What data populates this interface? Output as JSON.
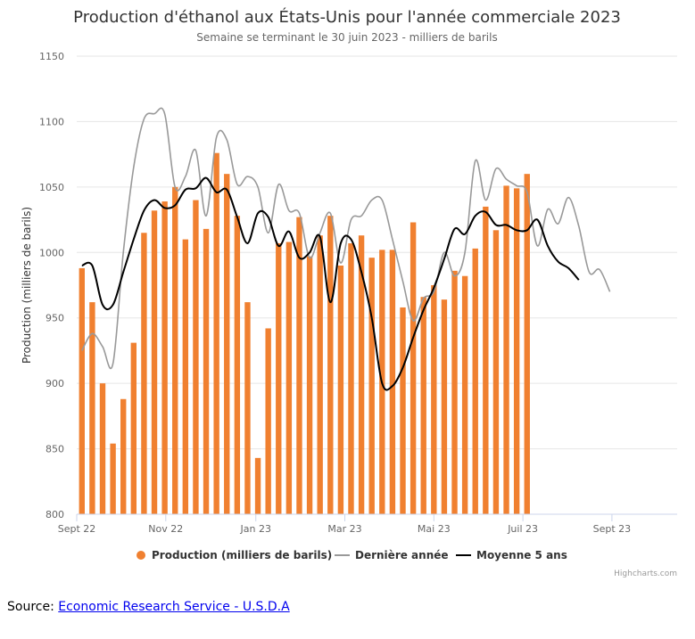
{
  "chart_data": {
    "type": "bar",
    "title": "Production d'éthanol aux États-Unis pour l'année commerciale 2023",
    "subtitle": "Semaine se terminant le 30 juin 2023 - milliers de barils",
    "ylabel": "Production (milliers de barils)",
    "ylim": [
      800,
      1150
    ],
    "yticks": [
      800,
      850,
      900,
      950,
      1000,
      1050,
      1100,
      1150
    ],
    "x_count": 58,
    "xticks": [
      {
        "index": 0,
        "label": "Sept 22"
      },
      {
        "index": 8.6,
        "label": "Nov 22"
      },
      {
        "index": 17.3,
        "label": "Jan 23"
      },
      {
        "index": 25.9,
        "label": "Mar 23"
      },
      {
        "index": 34.5,
        "label": "Mai 23"
      },
      {
        "index": 43.1,
        "label": "Juil 23"
      },
      {
        "index": 51.7,
        "label": "Sept 23"
      }
    ],
    "grid": true,
    "legend_position": "bottom",
    "series": [
      {
        "name": "Production (milliers de barils)",
        "type": "bar",
        "color": "#f08030",
        "values": [
          988,
          962,
          900,
          854,
          888,
          931,
          1015,
          1032,
          1039,
          1050,
          1010,
          1040,
          1018,
          1076,
          1060,
          1028,
          962,
          843,
          942,
          1007,
          1008,
          1027,
          997,
          1013,
          1028,
          990,
          1007,
          1013,
          996,
          1002,
          1002,
          958,
          1023,
          966,
          975,
          964,
          986,
          982,
          1003,
          1035,
          1017,
          1051,
          1049,
          1060
        ]
      },
      {
        "name": "Dernière année",
        "type": "line",
        "color": "#999999",
        "values": [
          925,
          938,
          928,
          915,
          1000,
          1065,
          1102,
          1106,
          1106,
          1050,
          1058,
          1078,
          1028,
          1088,
          1086,
          1052,
          1058,
          1050,
          1015,
          1052,
          1032,
          1030,
          996,
          1015,
          1030,
          992,
          1025,
          1028,
          1040,
          1040,
          1010,
          978,
          948,
          965,
          970,
          1000,
          982,
          1000,
          1070,
          1040,
          1064,
          1056,
          1051,
          1046,
          1005,
          1033,
          1022,
          1042,
          1020,
          985,
          987,
          970
        ]
      },
      {
        "name": "Moyenne 5 ans",
        "type": "line",
        "color": "#000000",
        "values": [
          990,
          990,
          960,
          960,
          985,
          1010,
          1032,
          1040,
          1034,
          1036,
          1048,
          1049,
          1057,
          1046,
          1048,
          1027,
          1007,
          1030,
          1027,
          1005,
          1016,
          996,
          1000,
          1012,
          962,
          1007,
          1010,
          985,
          950,
          900,
          898,
          912,
          935,
          956,
          973,
          995,
          1018,
          1014,
          1028,
          1031,
          1021,
          1021,
          1017,
          1017,
          1025,
          1005,
          993,
          988,
          979
        ]
      }
    ],
    "line_offsets": {
      "Dernière année": 0,
      "Moyenne 5 ans": 0
    },
    "credits": "Highcharts.com"
  },
  "source": {
    "prefix": "Source: ",
    "link_text": "Economic Research Service - U.S.D.A"
  }
}
